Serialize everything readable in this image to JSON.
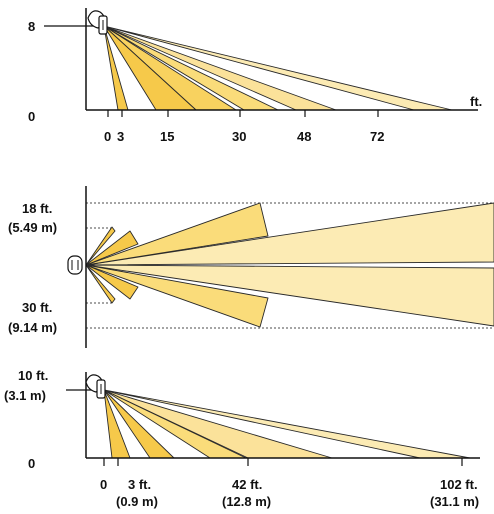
{
  "colors": {
    "beam_light": "#fcebb4",
    "beam_mid": "#fadc7a",
    "beam_deep": "#f6c94a",
    "line": "#111111"
  },
  "top_view": {
    "y_ticks": [
      "8",
      "0"
    ],
    "x_ticks": [
      "0",
      "3",
      "15",
      "30",
      "48",
      "72"
    ],
    "unit": "ft."
  },
  "plan_view": {
    "upper_label_ft": "18 ft.",
    "upper_label_m": "(5.49 m)",
    "lower_label_ft": "30 ft.",
    "lower_label_m": "(9.14 m)"
  },
  "bottom_view": {
    "y_label_ft": "10 ft.",
    "y_label_m": "(3.1 m)",
    "y_zero": "0",
    "x_ticks": [
      {
        "ft": "0",
        "m": ""
      },
      {
        "ft": "3 ft.",
        "m": "(0.9 m)"
      },
      {
        "ft": "42 ft.",
        "m": "(12.8 m)"
      },
      {
        "ft": "102 ft.",
        "m": "(31.1 m)"
      }
    ]
  }
}
